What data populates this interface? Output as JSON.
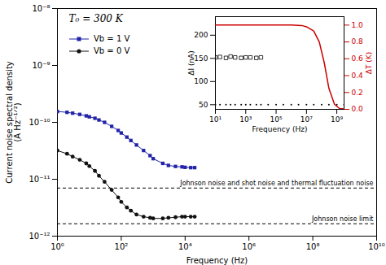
{
  "chart_data": [
    {
      "type": "line",
      "title": "T₀ = 300 K",
      "xlabel": "Frequency (Hz)",
      "ylabel": "Current noise spectral density\n(A Hz⁻¹ᐟ²)",
      "log": true,
      "grid": false,
      "legend": "upper left",
      "xlim": [
        1,
        10000000000.0
      ],
      "ylim": [
        1e-12,
        1e-08
      ],
      "xticks": [
        {
          "value": 1,
          "label": "10⁰"
        },
        {
          "value": 100,
          "label": "10²"
        },
        {
          "value": 10000,
          "label": "10⁴"
        },
        {
          "value": 1000000,
          "label": "10⁶"
        },
        {
          "value": 100000000,
          "label": "10⁸"
        },
        {
          "value": 10000000000,
          "label": "10¹⁰"
        }
      ],
      "yticks": [
        {
          "value": 1e-12,
          "label": "10⁻¹²"
        },
        {
          "value": 1e-11,
          "label": "10⁻¹¹"
        },
        {
          "value": 1e-10,
          "label": "10⁻¹⁰"
        },
        {
          "value": 1e-09,
          "label": "10⁻⁹"
        },
        {
          "value": 1e-08,
          "label": "10⁻⁸"
        }
      ],
      "x": [
        1,
        2,
        3,
        5,
        8,
        10,
        15,
        20,
        30,
        50,
        80,
        100,
        150,
        200,
        300,
        500,
        800,
        1000,
        2000,
        3000,
        5000,
        8000,
        10000,
        15000,
        20000
      ],
      "series": [
        {
          "name": "Vb = 1 V",
          "color": "#2222aa",
          "marker": "square",
          "line_style": "solid",
          "values": [
            1.55e-10,
            1.5e-10,
            1.45e-10,
            1.38e-10,
            1.3e-10,
            1.25e-10,
            1.18e-10,
            1.1e-10,
            1e-10,
            8.5e-11,
            7.2e-11,
            6.5e-11,
            5.5e-11,
            4.8e-11,
            4e-11,
            3.2e-11,
            2.6e-11,
            2.3e-11,
            1.9e-11,
            1.75e-11,
            1.68e-11,
            1.65e-11,
            1.62e-11,
            1.6e-11,
            1.6e-11
          ]
        },
        {
          "name": "Vb = 0 V",
          "color": "#111111",
          "marker": "circle",
          "line_style": "solid",
          "values": [
            3.2e-11,
            2.8e-11,
            2.5e-11,
            2.2e-11,
            1.9e-11,
            1.7e-11,
            1.4e-11,
            1.15e-11,
            9e-12,
            6.5e-12,
            4.8e-12,
            4e-12,
            3.2e-12,
            2.8e-12,
            2.4e-12,
            2.2e-12,
            2.1e-12,
            2.05e-12,
            2.05e-12,
            2.1e-12,
            2.15e-12,
            2.2e-12,
            2.2e-12,
            2.2e-12,
            2.2e-12
          ]
        }
      ],
      "annotations": [
        {
          "text": "Johnson noise and shot noise and thermal fluctuation noise",
          "y": 7e-12,
          "line_style": "dashed",
          "color": "#000000"
        },
        {
          "text": "Johnson noise limit",
          "y": 1.65e-12,
          "line_style": "dashed",
          "color": "#000000"
        }
      ]
    },
    {
      "type": "scatter",
      "xlabel": "Frequency (Hz)",
      "ylabel": "ΔI (nA)",
      "y2label": "ΔT (K)",
      "log": "x",
      "grid": false,
      "xlim": [
        10,
        3000000000.0
      ],
      "ylim": [
        40,
        240
      ],
      "y2lim": [
        0.0,
        1.1
      ],
      "xticks": [
        {
          "value": 10,
          "label": "10¹"
        },
        {
          "value": 1000,
          "label": "10³"
        },
        {
          "value": 100000,
          "label": "10⁵"
        },
        {
          "value": 10000000,
          "label": "10⁷"
        },
        {
          "value": 1000000000,
          "label": "10⁹"
        }
      ],
      "yticks": [
        50,
        100,
        150,
        200
      ],
      "y2ticks": [
        {
          "value": 0,
          "label": "0.0"
        },
        0.2,
        0.4,
        0.6,
        0.8,
        {
          "value": 1,
          "label": "1.0"
        }
      ],
      "series": [
        {
          "type": "scatter",
          "marker": "point",
          "color": "#000000",
          "x": [
            10,
            20,
            50,
            100,
            200,
            500,
            1000,
            2000,
            5000,
            10000,
            30000,
            100000,
            300000,
            1000000,
            3000000,
            10000000,
            30000000,
            100000000,
            300000000,
            1000000000,
            3000000000
          ],
          "values": [
            50,
            50,
            50,
            50,
            50,
            50,
            50,
            50,
            50,
            50,
            50,
            50,
            50,
            50,
            50,
            50,
            50,
            50,
            50,
            50,
            50
          ]
        },
        {
          "type": "scatter",
          "marker": "open_square",
          "color": "#000000",
          "x": [
            10,
            20,
            50,
            100,
            200,
            500,
            1000,
            2000,
            5000,
            10000
          ],
          "values": [
            152,
            153,
            151,
            154,
            152,
            151,
            152,
            152,
            151,
            152
          ]
        },
        {
          "type": "line",
          "axis": "y2",
          "color": "#cc0000",
          "line_style": "solid",
          "x": [
            10,
            100,
            1000,
            10000,
            100000,
            1000000,
            5000000,
            10000000,
            30000000,
            70000000,
            150000000,
            300000000,
            700000000,
            1500000000,
            3000000000
          ],
          "values": [
            1.0,
            1.0,
            1.0,
            1.0,
            1.0,
            1.0,
            0.995,
            0.98,
            0.93,
            0.8,
            0.55,
            0.25,
            0.06,
            0.01,
            0.005
          ]
        }
      ]
    }
  ]
}
